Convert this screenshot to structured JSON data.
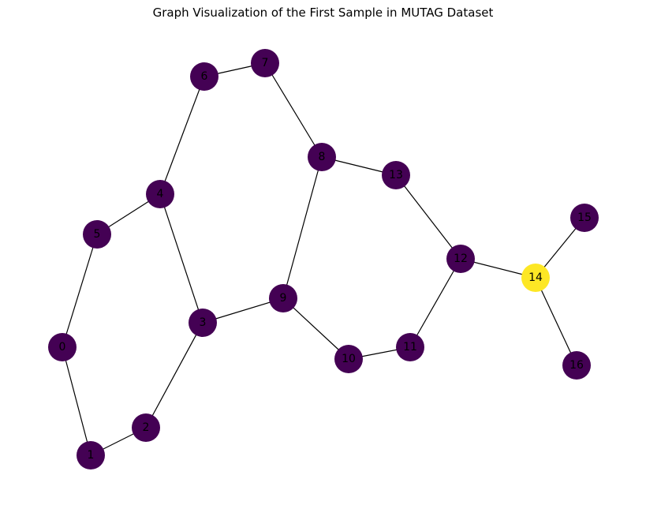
{
  "title": "Graph Visualization of the First Sample in MUTAG Dataset",
  "colors": {
    "node_default": "#440154",
    "node_highlight": "#fde725",
    "edge": "#000000"
  },
  "graph": {
    "nodes": [
      {
        "id": "0",
        "label": "0",
        "group": "default"
      },
      {
        "id": "1",
        "label": "1",
        "group": "default"
      },
      {
        "id": "2",
        "label": "2",
        "group": "default"
      },
      {
        "id": "3",
        "label": "3",
        "group": "default"
      },
      {
        "id": "4",
        "label": "4",
        "group": "default"
      },
      {
        "id": "5",
        "label": "5",
        "group": "default"
      },
      {
        "id": "6",
        "label": "6",
        "group": "default"
      },
      {
        "id": "7",
        "label": "7",
        "group": "default"
      },
      {
        "id": "8",
        "label": "8",
        "group": "default"
      },
      {
        "id": "9",
        "label": "9",
        "group": "default"
      },
      {
        "id": "10",
        "label": "10",
        "group": "default"
      },
      {
        "id": "11",
        "label": "11",
        "group": "default"
      },
      {
        "id": "12",
        "label": "12",
        "group": "default"
      },
      {
        "id": "13",
        "label": "13",
        "group": "default"
      },
      {
        "id": "14",
        "label": "14",
        "group": "highlight"
      },
      {
        "id": "15",
        "label": "15",
        "group": "default"
      },
      {
        "id": "16",
        "label": "16",
        "group": "default"
      }
    ],
    "edges": [
      [
        "0",
        "1"
      ],
      [
        "0",
        "5"
      ],
      [
        "1",
        "2"
      ],
      [
        "2",
        "3"
      ],
      [
        "3",
        "4"
      ],
      [
        "3",
        "9"
      ],
      [
        "4",
        "5"
      ],
      [
        "4",
        "6"
      ],
      [
        "6",
        "7"
      ],
      [
        "7",
        "8"
      ],
      [
        "8",
        "9"
      ],
      [
        "8",
        "13"
      ],
      [
        "9",
        "10"
      ],
      [
        "10",
        "11"
      ],
      [
        "11",
        "12"
      ],
      [
        "12",
        "13"
      ],
      [
        "12",
        "14"
      ],
      [
        "14",
        "15"
      ],
      [
        "14",
        "16"
      ]
    ]
  }
}
